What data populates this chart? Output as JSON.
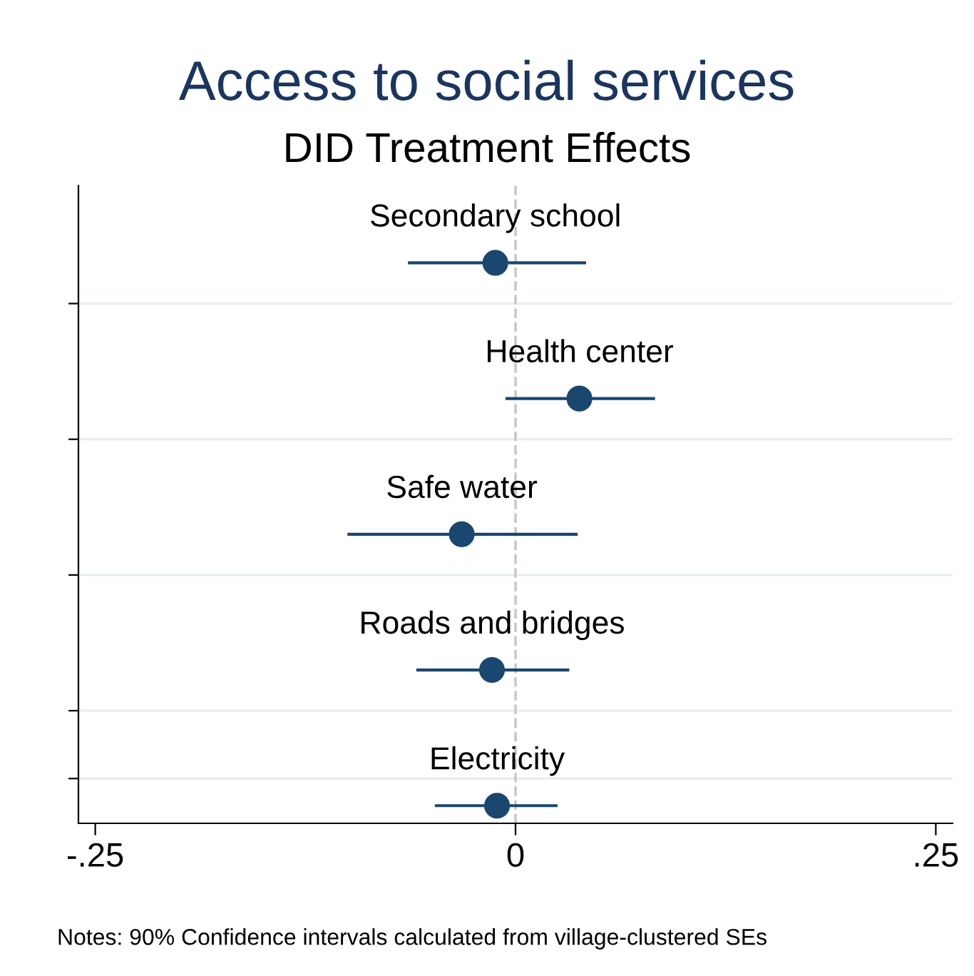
{
  "chart_data": {
    "type": "scatter",
    "orientation": "horizontal",
    "title": "Access to social services",
    "subtitle": "DID Treatment Effects",
    "categories": [
      "Secondary school",
      "Health center",
      "Safe water",
      "Roads and bridges",
      "Electricity"
    ],
    "values": [
      -0.012,
      0.038,
      -0.032,
      -0.014,
      -0.011
    ],
    "errors": [
      [
        -0.064,
        0.042
      ],
      [
        -0.006,
        0.083
      ],
      [
        -0.1,
        0.037
      ],
      [
        -0.059,
        0.032
      ],
      [
        -0.048,
        0.025
      ]
    ],
    "color": "#1a476f",
    "marker": "circle",
    "xlim": [
      -0.26,
      0.26
    ],
    "xticks": [
      {
        "value": -0.25,
        "label": "-.25"
      },
      0,
      {
        "value": 0.25,
        "label": ".25"
      }
    ],
    "ref_lines": [
      {
        "axis": "x",
        "value": 0,
        "color": "#c8c8c8",
        "line_style": "dashed"
      }
    ],
    "grid": "y",
    "tick_labels": "x",
    "annotations": [
      "Notes: 90% Confidence intervals calculated from village-clustered SEs"
    ]
  }
}
